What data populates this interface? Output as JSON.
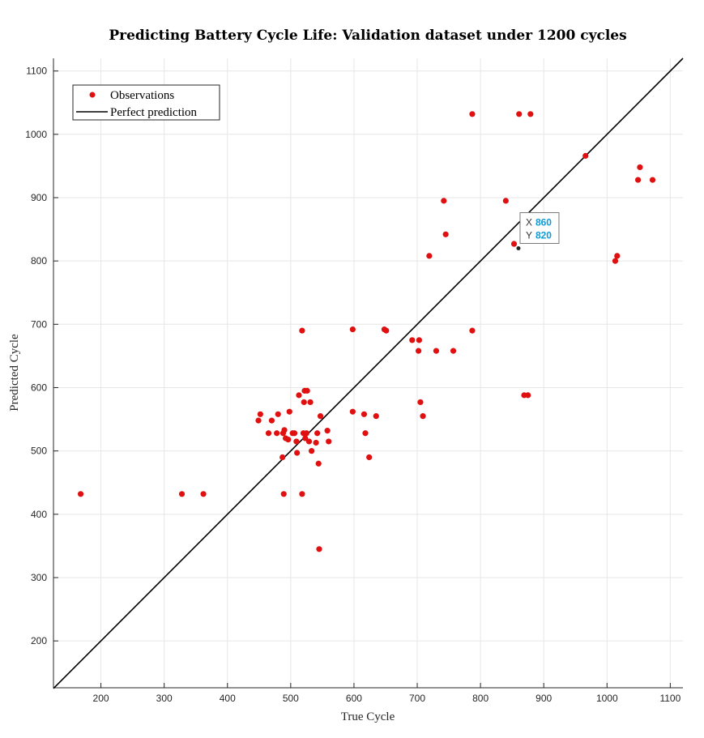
{
  "chart_data": {
    "type": "scatter",
    "title": "Predicting Battery Cycle Life: Validation dataset under 1200 cycles",
    "xlabel": "True Cycle",
    "ylabel": "Predicted Cycle",
    "xlim": [
      125,
      1120
    ],
    "ylim": [
      126,
      1120
    ],
    "xticks": [
      200,
      300,
      400,
      500,
      600,
      700,
      800,
      900,
      1000,
      1100
    ],
    "yticks": [
      200,
      300,
      400,
      500,
      600,
      700,
      800,
      900,
      1000,
      1100
    ],
    "xtick_labels": [
      "200",
      "300",
      "400",
      "500",
      "600",
      "700",
      "800",
      "900",
      "1000",
      "1100"
    ],
    "ytick_labels": [
      "200",
      "300",
      "400",
      "500",
      "600",
      "700",
      "800",
      "900",
      "1000",
      "1100"
    ],
    "grid": true,
    "legend_position": "top-left",
    "series": [
      {
        "name": "Observations",
        "color": "#e01010",
        "marker": "dot",
        "points": [
          [
            168,
            432
          ],
          [
            328,
            432
          ],
          [
            362,
            432
          ],
          [
            449,
            548
          ],
          [
            452,
            558
          ],
          [
            465,
            528
          ],
          [
            470,
            548
          ],
          [
            478,
            528
          ],
          [
            480,
            558
          ],
          [
            487,
            490
          ],
          [
            488,
            528
          ],
          [
            489,
            432
          ],
          [
            490,
            533
          ],
          [
            492,
            520
          ],
          [
            496,
            518
          ],
          [
            498,
            562
          ],
          [
            503,
            528
          ],
          [
            506,
            528
          ],
          [
            509,
            515
          ],
          [
            510,
            497
          ],
          [
            513,
            588
          ],
          [
            518,
            690
          ],
          [
            518,
            432
          ],
          [
            520,
            528
          ],
          [
            521,
            577
          ],
          [
            522,
            595
          ],
          [
            523,
            520
          ],
          [
            525,
            528
          ],
          [
            526,
            595
          ],
          [
            529,
            515
          ],
          [
            531,
            577
          ],
          [
            533,
            500
          ],
          [
            540,
            513
          ],
          [
            542,
            528
          ],
          [
            544,
            480
          ],
          [
            545,
            345
          ],
          [
            547,
            555
          ],
          [
            558,
            532
          ],
          [
            560,
            515
          ],
          [
            598,
            692
          ],
          [
            598,
            562
          ],
          [
            616,
            558
          ],
          [
            618,
            528
          ],
          [
            624,
            490
          ],
          [
            635,
            555
          ],
          [
            648,
            692
          ],
          [
            651,
            690
          ],
          [
            692,
            675
          ],
          [
            702,
            658
          ],
          [
            703,
            675
          ],
          [
            705,
            577
          ],
          [
            709,
            555
          ],
          [
            719,
            808
          ],
          [
            730,
            658
          ],
          [
            742,
            895
          ],
          [
            745,
            842
          ],
          [
            757,
            658
          ],
          [
            787,
            1032
          ],
          [
            787,
            690
          ],
          [
            840,
            895
          ],
          [
            853,
            827
          ],
          [
            861,
            1032
          ],
          [
            869,
            588
          ],
          [
            875,
            588
          ],
          [
            879,
            1032
          ],
          [
            966,
            966
          ],
          [
            1013,
            800
          ],
          [
            1016,
            808
          ],
          [
            1049,
            928
          ],
          [
            1052,
            948
          ],
          [
            1072,
            928
          ]
        ]
      },
      {
        "name": "Perfect prediction",
        "color": "#000000",
        "type": "line",
        "x": [
          125,
          1120
        ],
        "y": [
          125,
          1120
        ]
      }
    ],
    "datatip": {
      "x_key": "X",
      "y_key": "Y",
      "x_value": "860",
      "y_value": "820",
      "point": [
        860,
        820
      ]
    }
  }
}
